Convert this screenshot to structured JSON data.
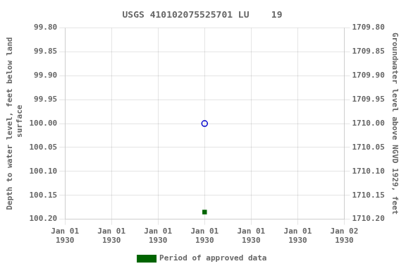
{
  "chart_data": {
    "type": "scatter",
    "title": "USGS 410102075525701 LU    19",
    "categories": [
      "Jan 01\n1930",
      "Jan 01\n1930",
      "Jan 01\n1930",
      "Jan 01\n1930",
      "Jan 01\n1930",
      "Jan 01\n1930",
      "Jan 02\n1930"
    ],
    "series": [
      {
        "color": "#0000cc",
        "marker": "open_circle",
        "values": [
          null,
          null,
          null,
          100.0,
          null,
          null,
          null
        ]
      },
      {
        "name": "Period of approved data",
        "color": "#006400",
        "marker": "square",
        "values": [
          null,
          null,
          null,
          100.185,
          null,
          null,
          null
        ]
      }
    ],
    "y_label": "Depth to water level, feet below land\n surface",
    "y2_label": "Groundwater level above NGVD 1929, feet",
    "ylim": [
      100.2,
      99.8
    ],
    "yticks": [
      {
        "value": 99.8,
        "label": "99.80"
      },
      99.85,
      {
        "value": 99.9,
        "label": "99.90"
      },
      99.95,
      {
        "value": 100.0,
        "label": "100.00"
      },
      100.05,
      {
        "value": 100.1,
        "label": "100.10"
      },
      100.15,
      {
        "value": 100.2,
        "label": "100.20"
      }
    ],
    "y2lim": [
      1710.2,
      1709.8
    ],
    "y2ticks": [
      {
        "value": 1710.2,
        "label": "1710.20"
      },
      1710.15,
      {
        "value": 1710.1,
        "label": "1710.10"
      },
      1710.05,
      {
        "value": 1710.0,
        "label": "1710.00"
      },
      1709.95,
      {
        "value": 1709.9,
        "label": "1709.90"
      },
      1709.85,
      {
        "value": 1709.8,
        "label": "1709.80"
      }
    ],
    "grid": true,
    "legend": "bottom"
  }
}
